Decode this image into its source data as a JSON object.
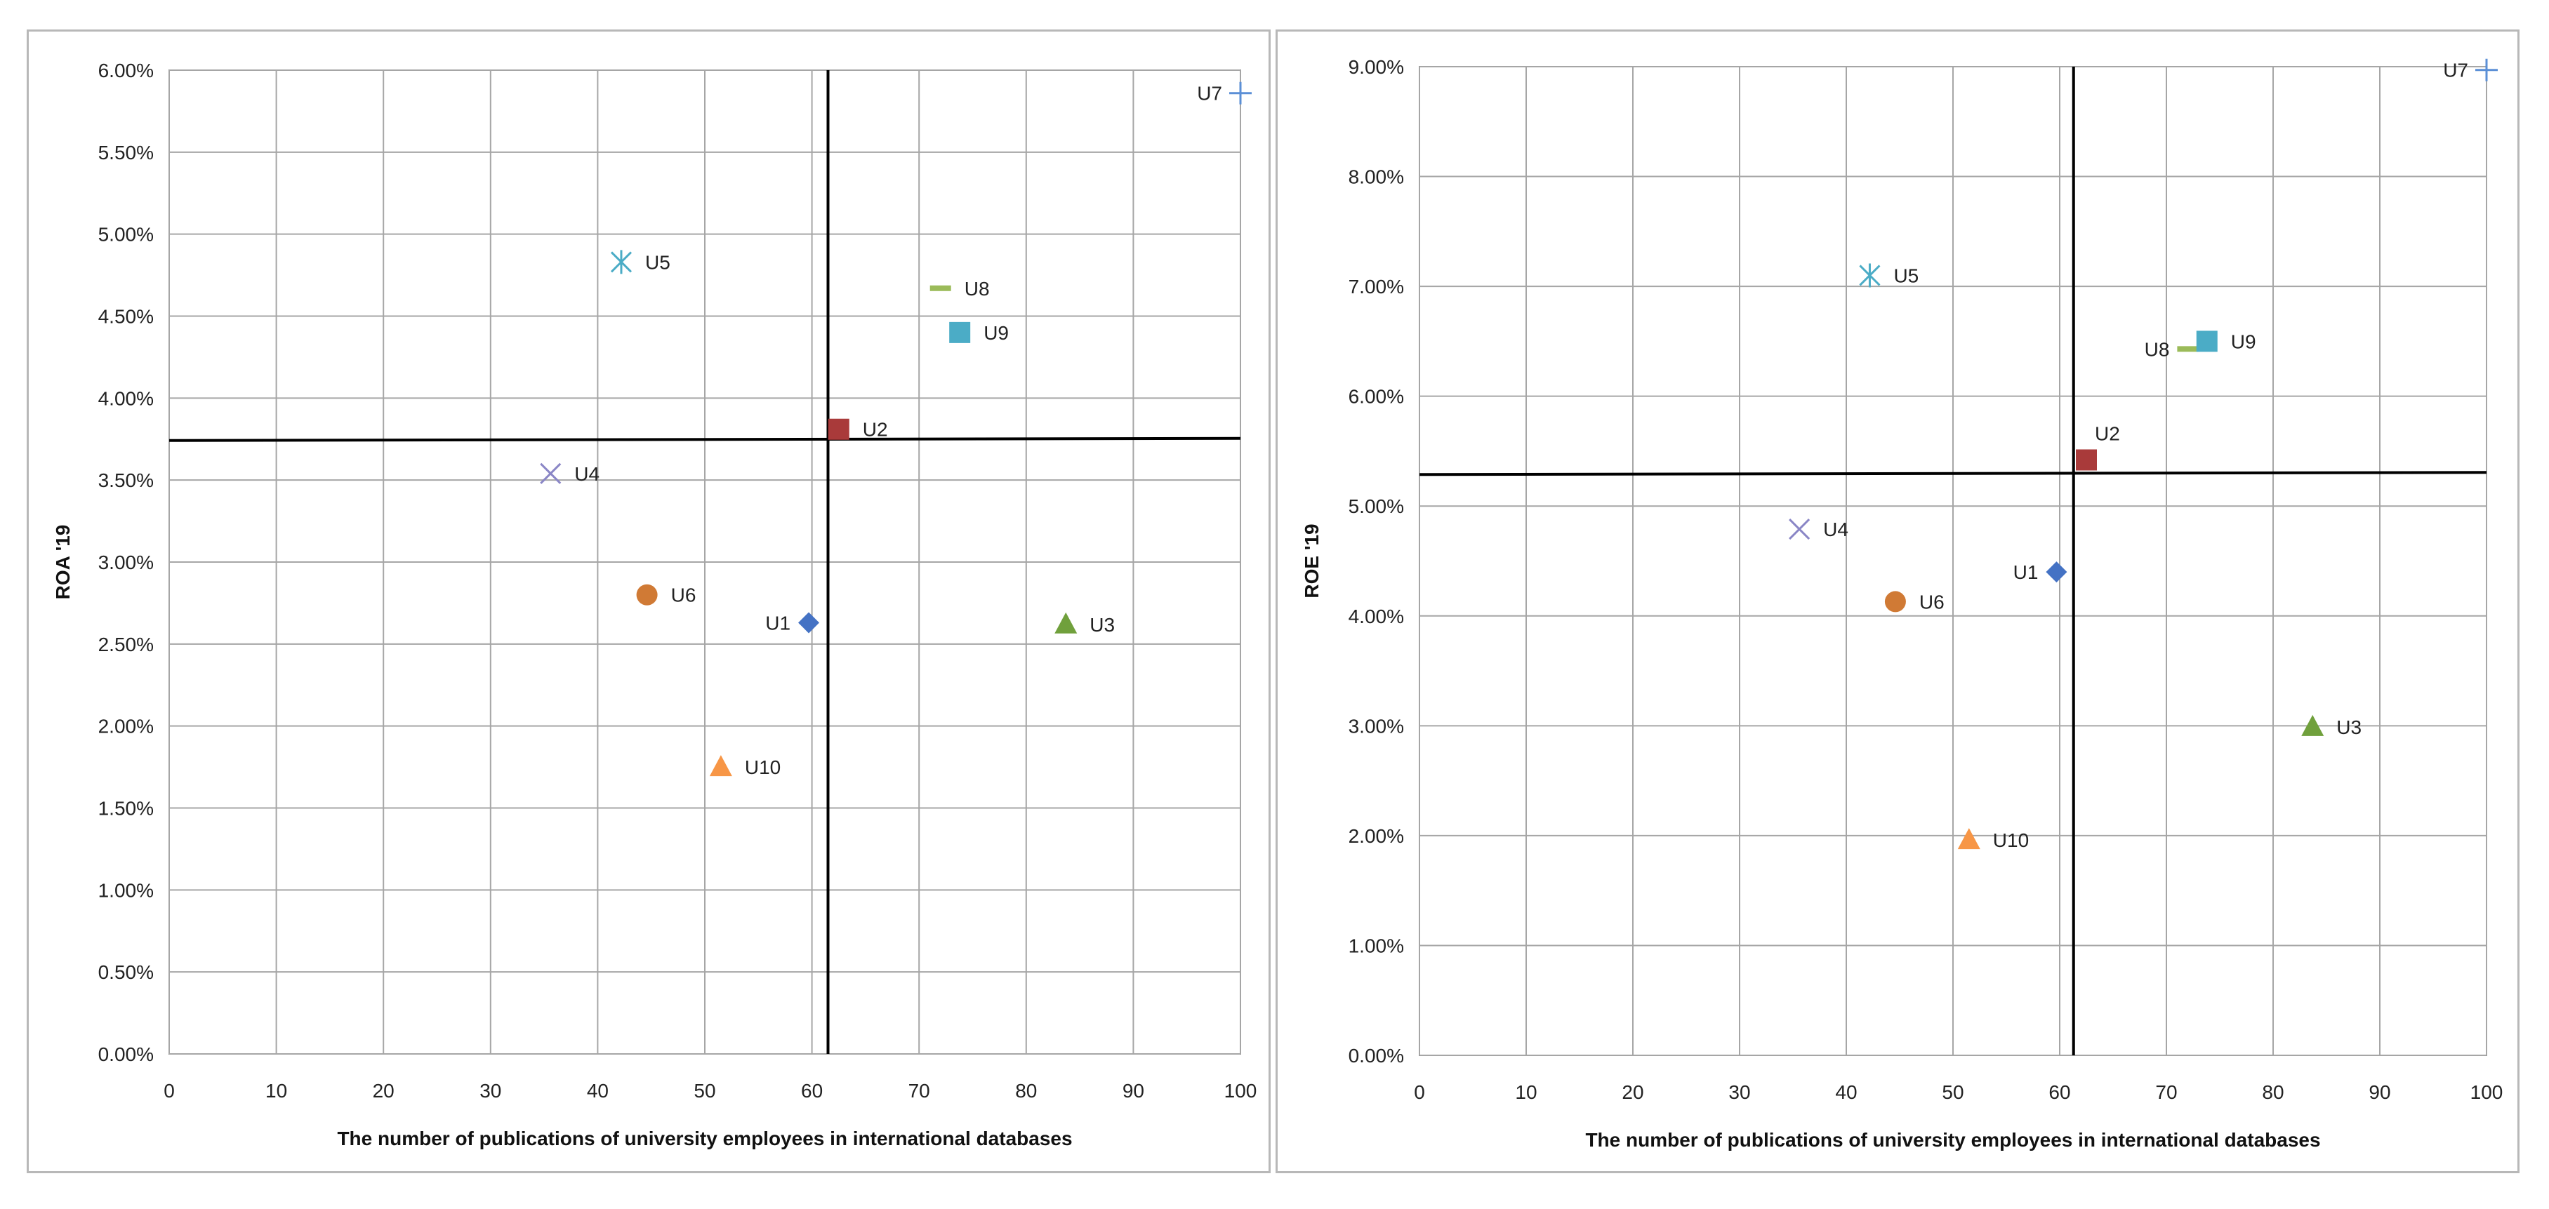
{
  "chart_data": [
    {
      "type": "scatter",
      "title": "",
      "xlabel": "The number of  publications of university employees in international databases",
      "ylabel": "ROA '19",
      "xlim": [
        0,
        100
      ],
      "ylim": [
        0,
        0.06
      ],
      "x_ticks": [
        "0",
        "10",
        "20",
        "30",
        "40",
        "50",
        "60",
        "70",
        "80",
        "90",
        "100"
      ],
      "y_ticks": [
        "0.00%",
        "0.50%",
        "1.00%",
        "1.50%",
        "2.00%",
        "2.50%",
        "3.00%",
        "3.50%",
        "4.00%",
        "4.50%",
        "5.00%",
        "5.50%",
        "6.00%"
      ],
      "grid": true,
      "legend": "none",
      "reference_lines": {
        "x": 61.5,
        "y": 0.0375
      },
      "points": [
        {
          "label": "U1",
          "x": 59.7,
          "y": 0.0263,
          "marker": "diamond",
          "color": "#4472C4",
          "label_side": "left"
        },
        {
          "label": "U2",
          "x": 62.5,
          "y": 0.0381,
          "marker": "square",
          "color": "#A93A3A",
          "label_side": "right"
        },
        {
          "label": "U3",
          "x": 83.7,
          "y": 0.0262,
          "marker": "triangle",
          "color": "#70A03C",
          "label_side": "right"
        },
        {
          "label": "U4",
          "x": 35.6,
          "y": 0.0354,
          "marker": "x",
          "color": "#8A86C6",
          "label_side": "right"
        },
        {
          "label": "U5",
          "x": 42.2,
          "y": 0.0483,
          "marker": "star",
          "color": "#4BACC6",
          "label_side": "right"
        },
        {
          "label": "U6",
          "x": 44.6,
          "y": 0.028,
          "marker": "circle",
          "color": "#D07A35",
          "label_side": "right"
        },
        {
          "label": "U7",
          "x": 100,
          "y": 0.0586,
          "marker": "plus",
          "color": "#5B8FD6",
          "label_side": "left"
        },
        {
          "label": "U8",
          "x": 72.0,
          "y": 0.0467,
          "marker": "dash",
          "color": "#9BBB59",
          "label_side": "right"
        },
        {
          "label": "U9",
          "x": 73.8,
          "y": 0.044,
          "marker": "square",
          "color": "#4BACC6",
          "label_side": "right"
        },
        {
          "label": "U10",
          "x": 51.5,
          "y": 0.0175,
          "marker": "triangle",
          "color": "#F79646",
          "label_side": "right"
        }
      ]
    },
    {
      "type": "scatter",
      "title": "",
      "xlabel": "The number of  publications of university employees in international databases",
      "ylabel": "ROE '19",
      "xlim": [
        0,
        100
      ],
      "ylim": [
        0,
        0.09
      ],
      "x_ticks": [
        "0",
        "10",
        "20",
        "30",
        "40",
        "50",
        "60",
        "70",
        "80",
        "90",
        "100"
      ],
      "y_ticks": [
        "0.00%",
        "1.00%",
        "2.00%",
        "3.00%",
        "4.00%",
        "5.00%",
        "6.00%",
        "7.00%",
        "8.00%",
        "9.00%"
      ],
      "grid": true,
      "legend": "none",
      "reference_lines": {
        "x": 61.3,
        "y": 0.053
      },
      "points": [
        {
          "label": "U1",
          "x": 59.7,
          "y": 0.044,
          "marker": "diamond",
          "color": "#4472C4",
          "label_side": "left"
        },
        {
          "label": "U2",
          "x": 62.5,
          "y": 0.0542,
          "marker": "square",
          "color": "#A93A3A",
          "label_side": "above-right"
        },
        {
          "label": "U3",
          "x": 83.7,
          "y": 0.0299,
          "marker": "triangle",
          "color": "#70A03C",
          "label_side": "right"
        },
        {
          "label": "U4",
          "x": 35.6,
          "y": 0.0479,
          "marker": "x",
          "color": "#8A86C6",
          "label_side": "right"
        },
        {
          "label": "U5",
          "x": 42.2,
          "y": 0.071,
          "marker": "star",
          "color": "#4BACC6",
          "label_side": "right"
        },
        {
          "label": "U6",
          "x": 44.6,
          "y": 0.0413,
          "marker": "circle",
          "color": "#D07A35",
          "label_side": "right"
        },
        {
          "label": "U7",
          "x": 100,
          "y": 0.0897,
          "marker": "plus",
          "color": "#5B8FD6",
          "label_side": "left"
        },
        {
          "label": "U8",
          "x": 72.0,
          "y": 0.0643,
          "marker": "dash",
          "color": "#9BBB59",
          "label_side": "left"
        },
        {
          "label": "U9",
          "x": 73.8,
          "y": 0.065,
          "marker": "square",
          "color": "#4BACC6",
          "label_side": "right"
        },
        {
          "label": "U10",
          "x": 51.5,
          "y": 0.0196,
          "marker": "triangle",
          "color": "#F79646",
          "label_side": "right"
        }
      ]
    }
  ]
}
